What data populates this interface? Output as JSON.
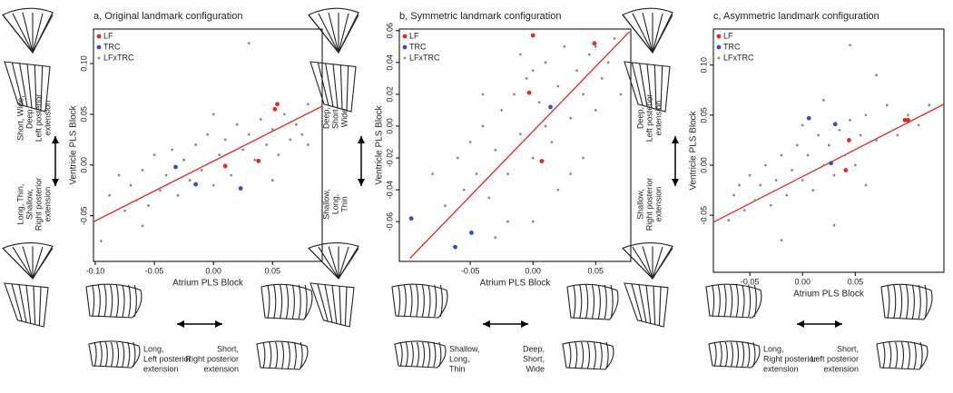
{
  "chart_data": [
    {
      "type": "scatter",
      "title": "a, Original landmark configuration",
      "x_label": "Atrium PLS Block",
      "y_label": "Ventricle PLS Block",
      "xlim": [
        -0.1015,
        0.092
      ],
      "ylim": [
        -0.095,
        0.134
      ],
      "xticks": [
        {
          "value": -0.1,
          "label": "-0.10"
        },
        {
          "value": -0.05,
          "label": "-0.05"
        },
        {
          "value": 0,
          "label": "0.00"
        },
        {
          "value": 0.05,
          "label": "0.05"
        }
      ],
      "yticks": [
        {
          "value": -0.05,
          "label": "-0.05"
        },
        {
          "value": 0,
          "label": "0.00"
        },
        {
          "value": 0.05,
          "label": "0.05"
        },
        {
          "value": 0.1,
          "label": "0.10"
        }
      ],
      "legend": "upper left",
      "series": [
        {
          "name": "LF",
          "color": "#e8251f",
          "x": [
            0.052,
            0.054,
            0.038,
            0.01
          ],
          "values": [
            0.055,
            0.06,
            0.004,
            -0.001
          ]
        },
        {
          "name": "TRC",
          "color": "#3050c8",
          "x": [
            -0.032,
            -0.015,
            0.023
          ],
          "values": [
            -0.002,
            -0.019,
            -0.023
          ]
        },
        {
          "name": "LFxTRC",
          "color": "#8a8a8a",
          "x": [
            -0.095,
            -0.088,
            -0.08,
            -0.075,
            -0.07,
            -0.065,
            -0.06,
            -0.055,
            -0.05,
            -0.045,
            -0.04,
            -0.035,
            -0.03,
            -0.025,
            -0.02,
            -0.015,
            -0.01,
            -0.005,
            0,
            0.005,
            0.01,
            0.015,
            0.02,
            0.025,
            0.03,
            0.035,
            0.04,
            0.045,
            0.05,
            0.055,
            0.06,
            0.065,
            0.07,
            0.075,
            0.08,
            0.03,
            -0.06,
            0.0,
            0.05,
            0.08
          ],
          "values": [
            -0.075,
            -0.03,
            -0.01,
            -0.045,
            -0.02,
            -0.035,
            -0.005,
            -0.04,
            0.01,
            -0.025,
            -0.01,
            0.015,
            -0.03,
            0.005,
            -0.015,
            0.02,
            -0.005,
            0.03,
            -0.02,
            0.01,
            0.025,
            -0.01,
            0.04,
            0.015,
            0.03,
            0.005,
            0.045,
            0.02,
            0.035,
            0.01,
            0.05,
            0.025,
            0.04,
            0.03,
            0.06,
            0.12,
            -0.06,
            0.05,
            -0.015,
            0.02
          ]
        }
      ],
      "fit_line": {
        "color": "#e8251f",
        "x": [
          -0.1015,
          0.092
        ],
        "values": [
          -0.056,
          0.058
        ]
      },
      "annotations": {
        "left_top": [
          "Short, Wide,",
          "Deep,",
          "Left posterior",
          "extension"
        ],
        "left_bottom": [
          "Long, Thin,",
          "Shallow,",
          "Right posterior",
          "extension"
        ],
        "bottom_left": [
          "Long,",
          "Left posterior",
          "extension"
        ],
        "bottom_right": [
          "Short,",
          "Right posterior",
          "extension"
        ]
      }
    },
    {
      "type": "scatter",
      "title": "b, Symmetric landmark configuration",
      "x_label": "Atrium PLS Block",
      "y_label": "Ventricle PLS Block",
      "xlim": [
        -0.1065,
        0.078
      ],
      "ylim": [
        -0.085,
        0.061
      ],
      "xticks": [
        {
          "value": -0.05,
          "label": "-0.05"
        },
        {
          "value": 0,
          "label": "0.00"
        },
        {
          "value": 0.05,
          "label": "0.05"
        }
      ],
      "yticks": [
        {
          "value": -0.06,
          "label": "-0.06"
        },
        {
          "value": -0.04,
          "label": "-0.04"
        },
        {
          "value": -0.02,
          "label": "-0.02"
        },
        {
          "value": 0,
          "label": "0.00"
        },
        {
          "value": 0.02,
          "label": "0.02"
        },
        {
          "value": 0.04,
          "label": "0.04"
        },
        {
          "value": 0.06,
          "label": "0.06"
        }
      ],
      "legend": "upper left",
      "series": [
        {
          "name": "LF",
          "color": "#e8251f",
          "x": [
            0.0,
            0.049,
            -0.003,
            0.007
          ],
          "values": [
            0.057,
            0.052,
            0.021,
            -0.022
          ]
        },
        {
          "name": "TRC",
          "color": "#3050c8",
          "x": [
            -0.097,
            -0.062,
            -0.049,
            0.014
          ],
          "values": [
            -0.058,
            -0.076,
            -0.067,
            0.012
          ]
        },
        {
          "name": "LFxTRC",
          "color": "#8a8a8a",
          "x": [
            -0.08,
            -0.07,
            -0.06,
            -0.055,
            -0.05,
            -0.045,
            -0.04,
            -0.035,
            -0.03,
            -0.025,
            -0.02,
            -0.015,
            -0.01,
            -0.005,
            0,
            0.005,
            0.01,
            0.015,
            0.02,
            0.025,
            0.03,
            0.035,
            0.04,
            0.045,
            0.05,
            0.055,
            0.06,
            0.065,
            0.07,
            -0.02,
            0.0,
            0.02,
            -0.04,
            0.03,
            0.01,
            -0.01,
            0.04,
            0.0,
            -0.03,
            0.05
          ],
          "values": [
            -0.03,
            -0.05,
            -0.02,
            -0.04,
            -0.01,
            -0.03,
            0.0,
            -0.045,
            -0.015,
            0.01,
            -0.03,
            0.02,
            -0.005,
            0.03,
            -0.02,
            0.015,
            0.04,
            -0.01,
            0.025,
            0.05,
            0.005,
            0.035,
            0.02,
            0.045,
            0.01,
            0.03,
            0.04,
            0.055,
            0.02,
            -0.06,
            -0.06,
            -0.04,
            0.02,
            -0.03,
            0.0,
            0.045,
            -0.02,
            0.035,
            -0.07,
            0.05
          ]
        }
      ],
      "fit_line": {
        "color": "#e8251f",
        "x": [
          -0.098,
          0.077
        ],
        "values": [
          -0.083,
          0.0594
        ]
      },
      "annotations": {
        "left_top": [
          "Deep,",
          "Short,",
          "Wide"
        ],
        "left_bottom": [
          "Shallow,",
          "Long,",
          "Thin"
        ],
        "bottom_left": [
          "Shallow,",
          "Long,",
          "Thin"
        ],
        "bottom_right": [
          "Deep,",
          "Short,",
          "Wide"
        ]
      }
    },
    {
      "type": "scatter",
      "title": "c, Asymmetric landmark configuration",
      "x_label": "Atrium PLS Block",
      "y_label": "Ventricle PLS Block",
      "xlim": [
        -0.0845,
        0.134
      ],
      "ylim": [
        -0.107,
        0.136
      ],
      "xticks": [
        {
          "value": -0.05,
          "label": "-0.05"
        },
        {
          "value": 0,
          "label": "0.00"
        },
        {
          "value": 0.05,
          "label": "0.05"
        }
      ],
      "yticks": [
        {
          "value": -0.05,
          "label": "-0.05"
        },
        {
          "value": 0,
          "label": "0.00"
        },
        {
          "value": 0.05,
          "label": "0.05"
        },
        {
          "value": 0.1,
          "label": "0.10"
        }
      ],
      "legend": "upper left",
      "series": [
        {
          "name": "LF",
          "color": "#e8251f",
          "x": [
            0.1,
            0.097,
            0.044,
            0.041
          ],
          "values": [
            0.045,
            0.045,
            0.025,
            -0.005
          ]
        },
        {
          "name": "TRC",
          "color": "#3050c8",
          "x": [
            0.006,
            0.031,
            0.027
          ],
          "values": [
            0.047,
            0.041,
            0.002
          ]
        },
        {
          "name": "LFxTRC",
          "color": "#8a8a8a",
          "x": [
            -0.07,
            -0.065,
            -0.06,
            -0.055,
            -0.05,
            -0.045,
            -0.04,
            -0.035,
            -0.03,
            -0.025,
            -0.02,
            -0.015,
            -0.01,
            -0.005,
            0,
            0.005,
            0.01,
            0.015,
            0.02,
            0.025,
            0.03,
            0.035,
            0.04,
            0.045,
            0.05,
            0.055,
            0.06,
            0.07,
            0.08,
            0.09,
            0.1,
            0.11,
            0.12,
            0.045,
            -0.02,
            0.02,
            0.07,
            0.03,
            0.0,
            0.06
          ],
          "values": [
            -0.055,
            -0.03,
            -0.02,
            -0.045,
            -0.01,
            -0.035,
            -0.02,
            0.0,
            -0.04,
            -0.015,
            0.01,
            -0.03,
            -0.005,
            0.02,
            -0.015,
            0.01,
            -0.025,
            0.03,
            0.0,
            0.02,
            -0.01,
            0.035,
            0.01,
            0.045,
            0.0,
            0.03,
            0.05,
            0.025,
            0.06,
            0.03,
            0.05,
            0.04,
            0.06,
            0.12,
            -0.075,
            0.065,
            0.09,
            -0.06,
            0.04,
            -0.02
          ]
        }
      ],
      "fit_line": {
        "color": "#e8251f",
        "x": [
          -0.0845,
          0.134
        ],
        "values": [
          -0.057,
          0.061
        ]
      },
      "annotations": {
        "left_top": [
          "Deep,",
          "Left posterior",
          "extension"
        ],
        "left_bottom": [
          "Shallow,",
          "Right posterior",
          "extension"
        ],
        "bottom_left": [
          "Long,",
          "Right posterior",
          "extension"
        ],
        "bottom_right": [
          "Short,",
          "Left posterior",
          "extension"
        ]
      }
    }
  ]
}
